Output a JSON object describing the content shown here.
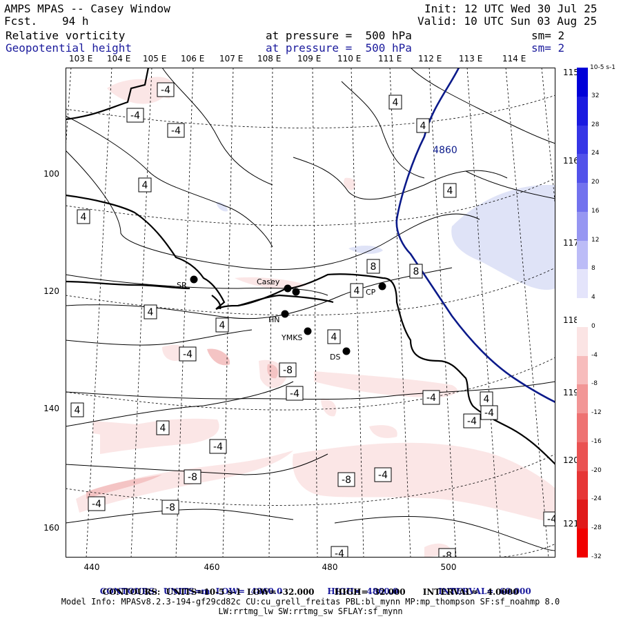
{
  "header": {
    "title": "AMPS MPAS -- Casey Window",
    "fcst_label": "Fcst.",
    "fcst_value": "94 h",
    "init": "Init: 12 UTC Wed 30 Jul 25",
    "valid": "Valid: 10 UTC Sun 03 Aug 25",
    "field1_name": "Relative vorticity",
    "field1_level": "at pressure =  500 hPa",
    "field1_sm": "sm= 2",
    "field2_name": "Geopotential height",
    "field2_level": "at pressure =  500 hPa",
    "field2_sm": "sm= 2"
  },
  "lon_labels_top": [
    "103 E",
    "104 E",
    "105 E",
    "106 E",
    "107 E",
    "108 E",
    "109 E",
    "110 E",
    "111 E",
    "112 E",
    "113 E",
    "114 E"
  ],
  "lon_labels_right": [
    "115 E",
    "116 E",
    "117 E",
    "118 E",
    "119 E",
    "120 E",
    "121 E"
  ],
  "y_ticks": [
    "100",
    "120",
    "140",
    "160"
  ],
  "x_ticks": [
    "440",
    "460",
    "480",
    "500"
  ],
  "stations": [
    {
      "id": "SR",
      "label": "SR"
    },
    {
      "id": "Casey",
      "label": "Casey"
    },
    {
      "id": "CP",
      "label": "CP"
    },
    {
      "id": "HN",
      "label": "HN"
    },
    {
      "id": "YMKS",
      "label": "YMKS"
    },
    {
      "id": "DS",
      "label": "DS"
    }
  ],
  "contour_labels": [
    "-4",
    "-4",
    "-4",
    "4",
    "4",
    "4860",
    "4",
    "4",
    "4",
    "8",
    "8",
    "4",
    "4",
    "4",
    "4",
    "-4",
    "-8",
    "-4",
    "-4",
    "4",
    "4",
    "4",
    "-4",
    "-4",
    "-8",
    "-8",
    "-4",
    "-4",
    "-8",
    "-4",
    "-4",
    "-8",
    "-4"
  ],
  "colorbar": {
    "unit": "10-5 s-1",
    "labels": [
      "32",
      "28",
      "24",
      "20",
      "16",
      "12",
      "8",
      "4",
      "0",
      "-4",
      "-8",
      "-12",
      "-16",
      "-20",
      "-24",
      "-28",
      "-32"
    ]
  },
  "footer": {
    "line1_a": "CONTOURS:  UNITS=m  LOW=  4860.0",
    "line1_b": "HIGH=  4860.0",
    "line1_c": "INTERVAL=  60.000",
    "line2": "CONTOURS:  UNITS=10-5 s-1  LOW= -32.000       HIGH=  32.000      INTERVAL=   4.0000",
    "line3": "Model Info: MPASv8.2.3-194-gf29cd82c CU:cu_grell_freitas PBL:bl_mynn MP:mp_thompson SF:sf_noahmp 8.0",
    "line4": "LW:rrtmg_lw SW:rrtmg_sw SFLAY:sf_mynn"
  },
  "colors": {
    "positive_fill": "#dfe3f7",
    "negative_fill_light": "#fbe6e6",
    "negative_fill_mid": "#f4c4c4",
    "height_contour": "#0b1a8a"
  }
}
